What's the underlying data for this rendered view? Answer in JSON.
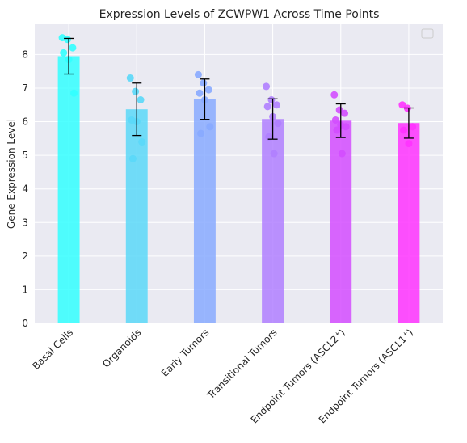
{
  "chart_data": {
    "type": "bar",
    "title": "Expression Levels of ZCWPW1 Across Time Points",
    "xlabel": "",
    "ylabel": "Gene Expression Level",
    "categories": [
      "Basal Cells",
      "Organoids",
      "Early Tumors",
      "Transitional Tumors",
      "Endpoint Tumors (ASCL2+)",
      "Endpoint Tumors (ASCL1+)"
    ],
    "values": [
      7.95,
      6.37,
      6.67,
      6.08,
      6.03,
      5.96
    ],
    "error": [
      0.53,
      0.78,
      0.6,
      0.6,
      0.5,
      0.45
    ],
    "points": [
      [
        8.5,
        8.45,
        8.2,
        8.05,
        7.85,
        6.85
      ],
      [
        7.3,
        6.9,
        6.65,
        6.05,
        6.0,
        5.4,
        4.9
      ],
      [
        7.4,
        7.15,
        6.95,
        6.85,
        6.65,
        5.85,
        5.65
      ],
      [
        7.05,
        6.65,
        6.5,
        6.45,
        6.15,
        5.95,
        5.55,
        5.05
      ],
      [
        6.8,
        6.35,
        6.25,
        6.05,
        5.9,
        5.85,
        5.75,
        5.05
      ],
      [
        6.5,
        6.4,
        5.85,
        5.75,
        5.35
      ]
    ],
    "colors": [
      "#33ffff",
      "#5ad8f8",
      "#88aaff",
      "#b07fff",
      "#d34cff",
      "#ff33ff"
    ],
    "ylim": [
      0,
      8.9
    ],
    "yticks": [
      "0",
      "1",
      "2",
      "3",
      "4",
      "5",
      "6",
      "7",
      "8"
    ],
    "grid": true,
    "legend": "top-right"
  }
}
